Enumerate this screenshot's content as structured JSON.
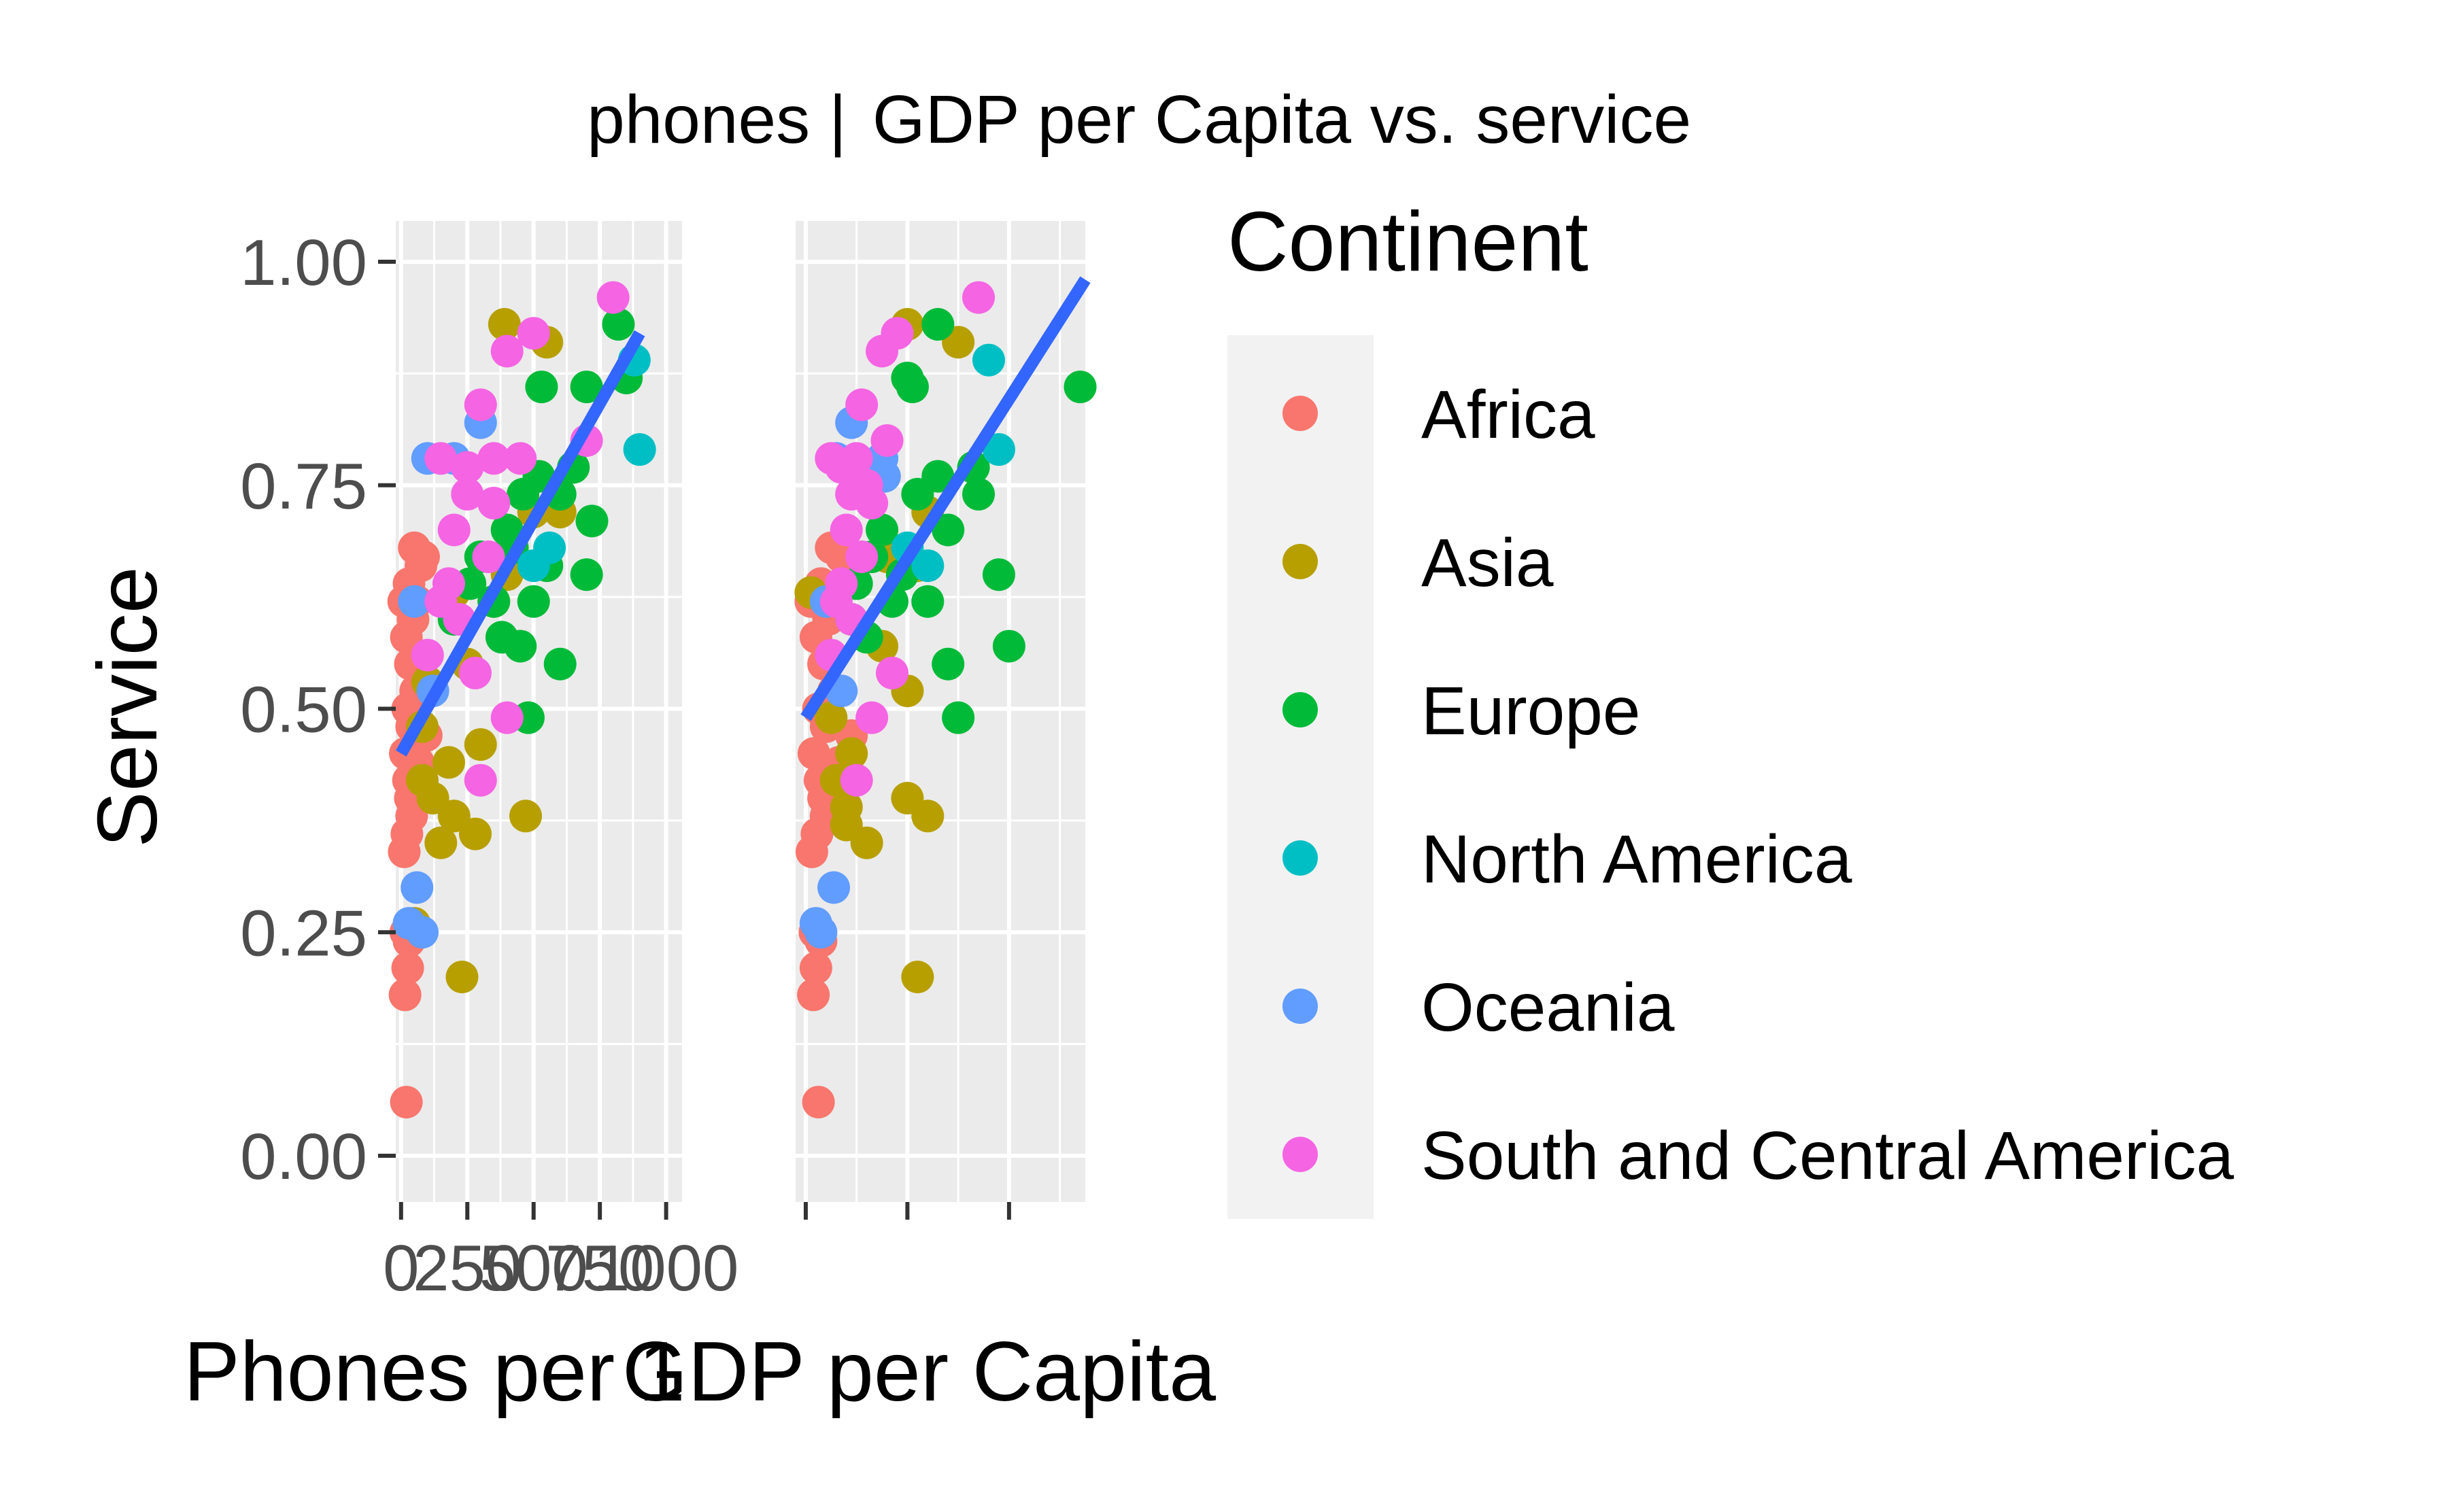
{
  "chart_data": [
    {
      "type": "scatter",
      "title": "phones |",
      "xlabel": "Phones per 1",
      "ylabel": "Service",
      "xlim": [
        -20,
        1060
      ],
      "ylim": [
        -0.05,
        1.05
      ],
      "x_ticks": [
        {
          "value": 0,
          "label": "0"
        },
        {
          "value": 250,
          "label": "250"
        },
        {
          "value": 500,
          "label": "500"
        },
        {
          "value": 750,
          "label": "750"
        },
        {
          "value": 1000,
          "label": "1000"
        }
      ],
      "y_ticks": [
        {
          "value": 0.0,
          "label": "0.00"
        },
        {
          "value": 0.25,
          "label": "0.25"
        },
        {
          "value": 0.5,
          "label": "0.50"
        },
        {
          "value": 0.75,
          "label": "0.75"
        },
        {
          "value": 1.0,
          "label": "1.00"
        }
      ],
      "grid": true,
      "trend_line": {
        "x": [
          0,
          900
        ],
        "y": [
          0.45,
          0.92
        ],
        "color": "#3366FF"
      },
      "series": [
        {
          "name": "Africa",
          "points": [
            [
              20,
              0.06
            ],
            [
              15,
              0.18
            ],
            [
              25,
              0.21
            ],
            [
              18,
              0.25
            ],
            [
              30,
              0.24
            ],
            [
              12,
              0.34
            ],
            [
              22,
              0.36
            ],
            [
              35,
              0.4
            ],
            [
              28,
              0.42
            ],
            [
              16,
              0.45
            ],
            [
              40,
              0.48
            ],
            [
              25,
              0.5
            ],
            [
              55,
              0.52
            ],
            [
              35,
              0.55
            ],
            [
              20,
              0.58
            ],
            [
              45,
              0.6
            ],
            [
              60,
              0.62
            ],
            [
              30,
              0.64
            ],
            [
              75,
              0.66
            ],
            [
              50,
              0.68
            ],
            [
              85,
              0.67
            ],
            [
              40,
              0.38
            ],
            [
              65,
              0.44
            ],
            [
              10,
              0.62
            ],
            [
              95,
              0.47
            ]
          ]
        },
        {
          "name": "Asia",
          "points": [
            [
              50,
              0.26
            ],
            [
              230,
              0.2
            ],
            [
              470,
              0.38
            ],
            [
              150,
              0.35
            ],
            [
              200,
              0.38
            ],
            [
              280,
              0.36
            ],
            [
              120,
              0.4
            ],
            [
              300,
              0.46
            ],
            [
              180,
              0.44
            ],
            [
              80,
              0.42
            ],
            [
              250,
              0.55
            ],
            [
              100,
              0.53
            ],
            [
              200,
              0.63
            ],
            [
              350,
              0.62
            ],
            [
              400,
              0.65
            ],
            [
              500,
              0.72
            ],
            [
              600,
              0.72
            ],
            [
              390,
              0.93
            ],
            [
              550,
              0.91
            ],
            [
              80,
              0.48
            ]
          ]
        },
        {
          "name": "Europe",
          "points": [
            [
              200,
              0.6
            ],
            [
              300,
              0.67
            ],
            [
              350,
              0.62
            ],
            [
              400,
              0.7
            ],
            [
              450,
              0.57
            ],
            [
              480,
              0.49
            ],
            [
              500,
              0.62
            ],
            [
              550,
              0.66
            ],
            [
              600,
              0.55
            ],
            [
              520,
              0.76
            ],
            [
              600,
              0.74
            ],
            [
              650,
              0.77
            ],
            [
              700,
              0.65
            ],
            [
              720,
              0.71
            ],
            [
              530,
              0.86
            ],
            [
              700,
              0.86
            ],
            [
              820,
              0.93
            ],
            [
              850,
              0.87
            ],
            [
              420,
              0.68
            ],
            [
              380,
              0.58
            ],
            [
              260,
              0.64
            ],
            [
              460,
              0.74
            ]
          ]
        },
        {
          "name": "North America",
          "points": [
            [
              880,
              0.89
            ],
            [
              900,
              0.79
            ],
            [
              560,
              0.68
            ],
            [
              500,
              0.66
            ]
          ]
        },
        {
          "name": "Oceania",
          "points": [
            [
              30,
              0.26
            ],
            [
              60,
              0.3
            ],
            [
              50,
              0.62
            ],
            [
              100,
              0.78
            ],
            [
              200,
              0.78
            ],
            [
              300,
              0.82
            ],
            [
              120,
              0.52
            ],
            [
              80,
              0.25
            ]
          ]
        },
        {
          "name": "South and Central America",
          "points": [
            [
              150,
              0.78
            ],
            [
              250,
              0.77
            ],
            [
              350,
              0.78
            ],
            [
              450,
              0.78
            ],
            [
              400,
              0.9
            ],
            [
              500,
              0.92
            ],
            [
              800,
              0.96
            ],
            [
              700,
              0.8
            ],
            [
              300,
              0.84
            ],
            [
              200,
              0.7
            ],
            [
              350,
              0.73
            ],
            [
              150,
              0.62
            ],
            [
              280,
              0.54
            ],
            [
              300,
              0.42
            ],
            [
              400,
              0.49
            ],
            [
              220,
              0.6
            ],
            [
              180,
              0.64
            ],
            [
              100,
              0.56
            ],
            [
              330,
              0.67
            ],
            [
              250,
              0.74
            ]
          ]
        }
      ]
    },
    {
      "type": "scatter",
      "title": "GDP per Capita vs. service",
      "xlabel": "GDP per Capita",
      "ylabel": "",
      "xlim": [
        -2000,
        55000
      ],
      "ylim": [
        -0.05,
        1.05
      ],
      "x_ticks": [
        {
          "value": 0,
          "label": ""
        },
        {
          "value": 20000,
          "label": ""
        },
        {
          "value": 40000,
          "label": ""
        }
      ],
      "y_ticks": [],
      "grid": true,
      "trend_line": {
        "x": [
          0,
          55000
        ],
        "y": [
          0.49,
          0.98
        ],
        "color": "#3366FF"
      },
      "series": [
        {
          "name": "Africa",
          "points": [
            [
              2500,
              0.06
            ],
            [
              1500,
              0.18
            ],
            [
              2000,
              0.21
            ],
            [
              1800,
              0.25
            ],
            [
              3000,
              0.24
            ],
            [
              1200,
              0.34
            ],
            [
              2200,
              0.36
            ],
            [
              3500,
              0.4
            ],
            [
              2800,
              0.42
            ],
            [
              1600,
              0.45
            ],
            [
              4000,
              0.48
            ],
            [
              2500,
              0.5
            ],
            [
              5500,
              0.52
            ],
            [
              3500,
              0.55
            ],
            [
              2000,
              0.58
            ],
            [
              4500,
              0.6
            ],
            [
              6000,
              0.62
            ],
            [
              3000,
              0.64
            ],
            [
              10000,
              0.67
            ],
            [
              5000,
              0.68
            ],
            [
              7000,
              0.67
            ],
            [
              4000,
              0.38
            ],
            [
              6500,
              0.44
            ],
            [
              1000,
              0.62
            ],
            [
              9000,
              0.47
            ]
          ]
        },
        {
          "name": "Asia",
          "points": [
            [
              1000,
              0.63
            ],
            [
              22000,
              0.2
            ],
            [
              24000,
              0.38
            ],
            [
              12000,
              0.35
            ],
            [
              8000,
              0.37
            ],
            [
              20000,
              0.4
            ],
            [
              9000,
              0.45
            ],
            [
              20000,
              0.52
            ],
            [
              15000,
              0.57
            ],
            [
              6000,
              0.42
            ],
            [
              16000,
              0.67
            ],
            [
              22000,
              0.66
            ],
            [
              24000,
              0.72
            ],
            [
              20000,
              0.93
            ],
            [
              30000,
              0.91
            ],
            [
              5000,
              0.49
            ],
            [
              8000,
              0.39
            ]
          ]
        },
        {
          "name": "Europe",
          "points": [
            [
              9000,
              0.6
            ],
            [
              13000,
              0.67
            ],
            [
              17000,
              0.62
            ],
            [
              19000,
              0.65
            ],
            [
              24000,
              0.62
            ],
            [
              28000,
              0.55
            ],
            [
              30000,
              0.49
            ],
            [
              38000,
              0.65
            ],
            [
              40000,
              0.57
            ],
            [
              26000,
              0.76
            ],
            [
              34000,
              0.74
            ],
            [
              33000,
              0.77
            ],
            [
              20000,
              0.87
            ],
            [
              21000,
              0.86
            ],
            [
              26000,
              0.93
            ],
            [
              54000,
              0.86
            ],
            [
              15000,
              0.7
            ],
            [
              12000,
              0.58
            ],
            [
              10000,
              0.64
            ],
            [
              22000,
              0.74
            ],
            [
              28000,
              0.7
            ]
          ]
        },
        {
          "name": "North America",
          "points": [
            [
              36000,
              0.89
            ],
            [
              38000,
              0.79
            ],
            [
              20000,
              0.68
            ],
            [
              24000,
              0.66
            ]
          ]
        },
        {
          "name": "Oceania",
          "points": [
            [
              2000,
              0.26
            ],
            [
              5500,
              0.3
            ],
            [
              4000,
              0.62
            ],
            [
              6000,
              0.78
            ],
            [
              15000,
              0.78
            ],
            [
              9000,
              0.82
            ],
            [
              7000,
              0.52
            ],
            [
              3000,
              0.25
            ],
            [
              15500,
              0.76
            ]
          ]
        },
        {
          "name": "South and Central America",
          "points": [
            [
              5000,
              0.78
            ],
            [
              7000,
              0.77
            ],
            [
              10000,
              0.78
            ],
            [
              12000,
              0.75
            ],
            [
              15000,
              0.9
            ],
            [
              18000,
              0.92
            ],
            [
              34000,
              0.96
            ],
            [
              16000,
              0.8
            ],
            [
              11000,
              0.84
            ],
            [
              8000,
              0.7
            ],
            [
              13000,
              0.73
            ],
            [
              6000,
              0.62
            ],
            [
              17000,
              0.54
            ],
            [
              10000,
              0.42
            ],
            [
              13000,
              0.49
            ],
            [
              9000,
              0.6
            ],
            [
              7000,
              0.64
            ],
            [
              5000,
              0.56
            ],
            [
              11000,
              0.67
            ],
            [
              9000,
              0.74
            ]
          ]
        }
      ]
    }
  ],
  "legend": {
    "title": "Continent",
    "items": [
      {
        "label": "Africa",
        "color": "#F8766D"
      },
      {
        "label": "Asia",
        "color": "#B79F00"
      },
      {
        "label": "Europe",
        "color": "#00BA38"
      },
      {
        "label": "North America",
        "color": "#00BFC4"
      },
      {
        "label": "Oceania",
        "color": "#619CFF"
      },
      {
        "label": "South and Central America",
        "color": "#F564E3"
      }
    ]
  }
}
